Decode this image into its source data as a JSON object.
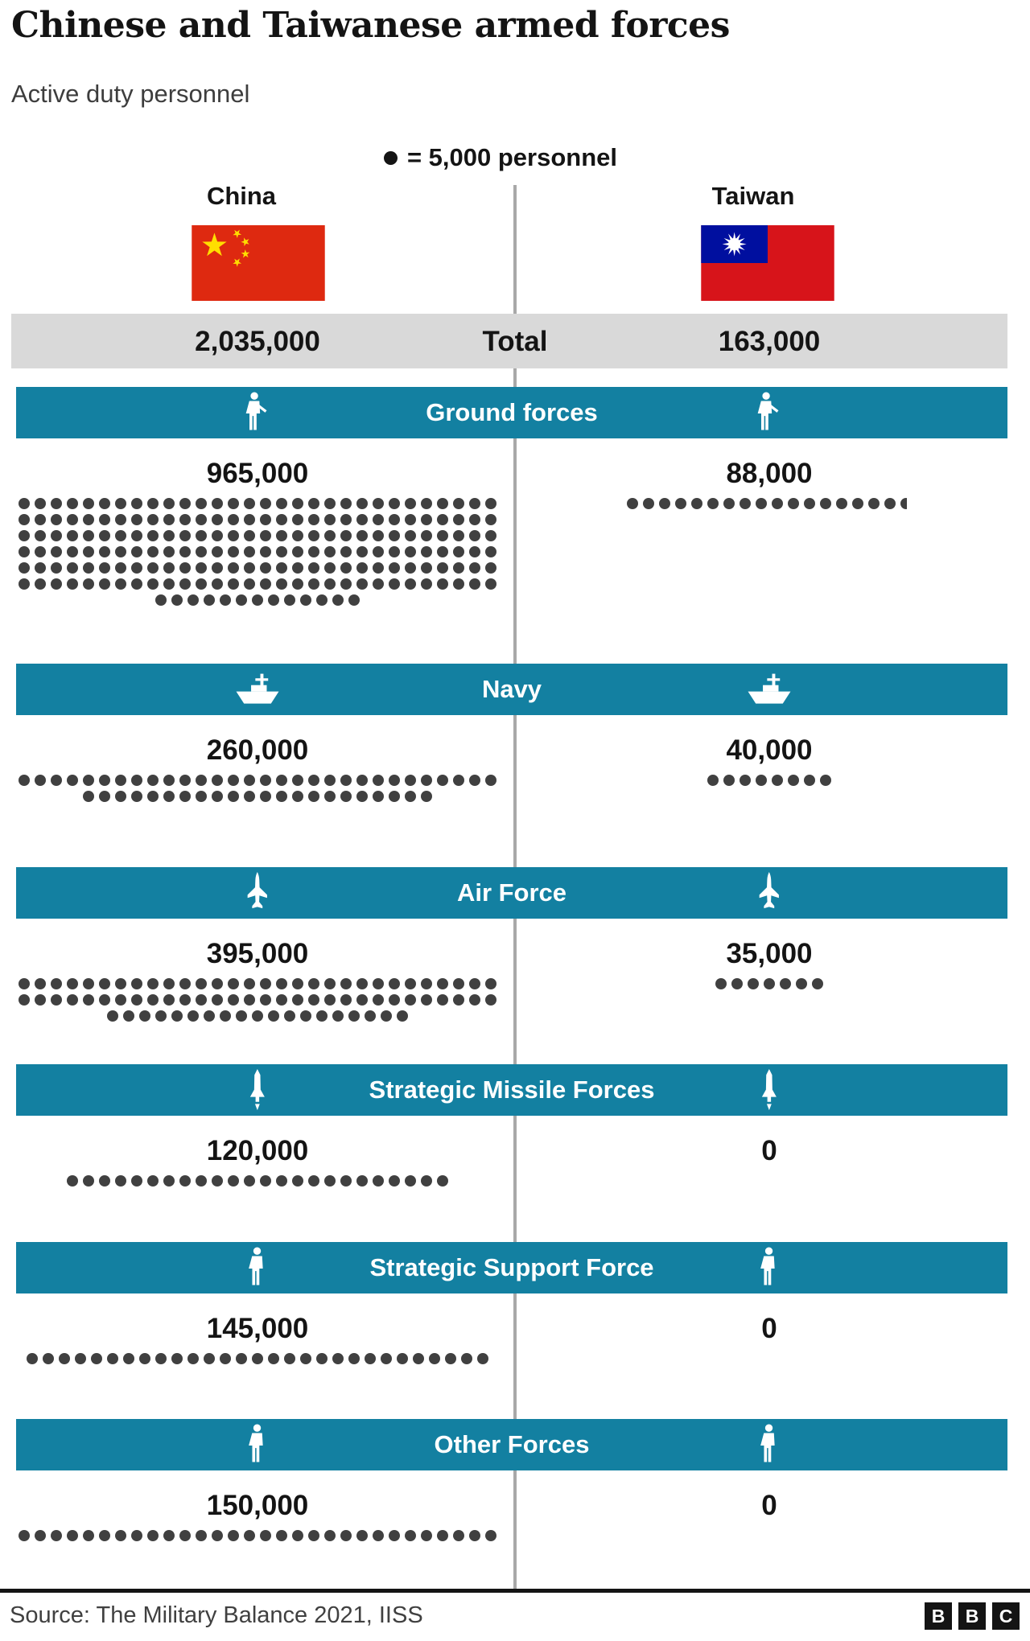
{
  "header": {
    "title": "Chinese and Taiwanese armed forces",
    "subtitle": "Active duty personnel"
  },
  "legend": {
    "symbol": "dot",
    "text": "= 5,000 personnel"
  },
  "columns": {
    "left": {
      "label": "China",
      "flag": "china-flag"
    },
    "right": {
      "label": "Taiwan",
      "flag": "taiwan-flag"
    }
  },
  "total_row": {
    "china": "2,035,000",
    "label": "Total",
    "taiwan": "163,000"
  },
  "footer": {
    "source": "Source: The Military Balance 2021, IISS",
    "logo_letters": [
      "B",
      "B",
      "C"
    ]
  },
  "colors": {
    "band_teal": "#1380A1",
    "total_band_gray": "#d9d9d9",
    "dot_gray": "#404040",
    "divider_gray": "#a8a8a8",
    "text_dark": "#141414",
    "china_flag_red": "#de2910",
    "china_flag_yellow": "#ffde00",
    "taiwan_flag_red": "#d7141a",
    "taiwan_flag_blue": "#000f9f"
  },
  "chart_data": {
    "type": "pictogram",
    "title": "Chinese and Taiwanese armed forces",
    "subtitle": "Active duty personnel",
    "unit_per_dot": 5000,
    "unit_label": "personnel",
    "columns": [
      "China",
      "Taiwan"
    ],
    "totals": {
      "china": 2035000,
      "taiwan": 163000
    },
    "sections": [
      {
        "name": "Ground forces",
        "icon": "soldier-icon",
        "china": {
          "value": 965000,
          "label": "965,000",
          "dot_rows": [
            30,
            30,
            30,
            30,
            30,
            30,
            13
          ]
        },
        "taiwan": {
          "value": 88000,
          "label": "88,000",
          "dot_rows": [
            17.6
          ]
        }
      },
      {
        "name": "Navy",
        "icon": "ship-icon",
        "china": {
          "value": 260000,
          "label": "260,000",
          "dot_rows": [
            30,
            22
          ]
        },
        "taiwan": {
          "value": 40000,
          "label": "40,000",
          "dot_rows": [
            8
          ]
        }
      },
      {
        "name": "Air Force",
        "icon": "jet-icon",
        "china": {
          "value": 395000,
          "label": "395,000",
          "dot_rows": [
            30,
            30,
            19
          ]
        },
        "taiwan": {
          "value": 35000,
          "label": "35,000",
          "dot_rows": [
            7
          ]
        }
      },
      {
        "name": "Strategic Missile Forces",
        "icon": "missile-icon",
        "china": {
          "value": 120000,
          "label": "120,000",
          "dot_rows": [
            24
          ]
        },
        "taiwan": {
          "value": 0,
          "label": "0",
          "dot_rows": []
        }
      },
      {
        "name": "Strategic Support Force",
        "icon": "person-icon",
        "china": {
          "value": 145000,
          "label": "145,000",
          "dot_rows": [
            29
          ]
        },
        "taiwan": {
          "value": 0,
          "label": "0",
          "dot_rows": []
        }
      },
      {
        "name": "Other Forces",
        "icon": "person-icon",
        "china": {
          "value": 150000,
          "label": "150,000",
          "dot_rows": [
            30
          ]
        },
        "taiwan": {
          "value": 0,
          "label": "0",
          "dot_rows": []
        }
      }
    ]
  }
}
